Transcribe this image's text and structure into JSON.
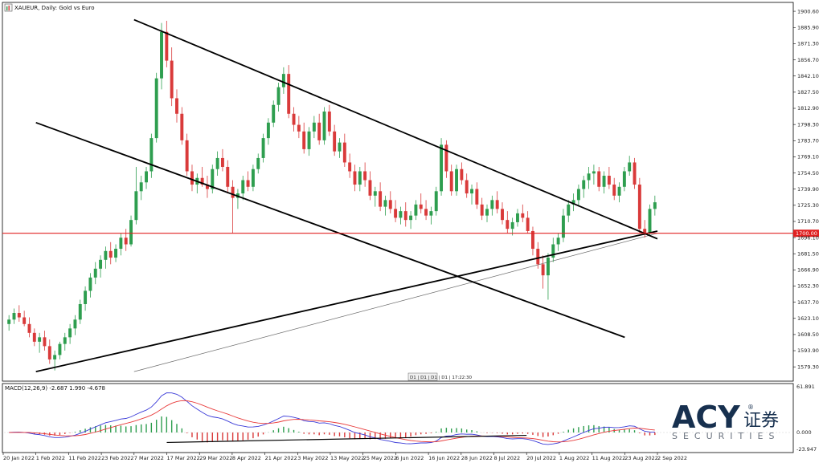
{
  "window": {
    "symbol_title": "XAUEUR, Daily: Gold vs Euro",
    "period_tabs": "D1 | D1 | D1 | D1 | 17:22:30"
  },
  "price_scale": {
    "labels": [
      "1900.60",
      "1885.90",
      "1871.30",
      "1856.70",
      "1842.10",
      "1827.50",
      "1812.90",
      "1798.30",
      "1783.70",
      "1769.10",
      "1754.50",
      "1739.90",
      "1725.30",
      "1710.70",
      "1696.10",
      "1681.50",
      "1666.90",
      "1652.30",
      "1637.70",
      "1623.10",
      "1608.50",
      "1593.90",
      "1579.30"
    ],
    "current_price_label": "1700.00"
  },
  "time_scale": {
    "labels": [
      "20 Jan 2022",
      "1 Feb 2022",
      "11 Feb 2022",
      "23 Feb 2022",
      "7 Mar 2022",
      "17 Mar 2022",
      "29 Mar 2022",
      "8 Apr 2022",
      "21 Apr 2022",
      "3 May 2022",
      "13 May 2022",
      "25 May 2022",
      "6 Jun 2022",
      "16 Jun 2022",
      "28 Jun 2022",
      "8 Jul 2022",
      "20 Jul 2022",
      "1 Aug 2022",
      "11 Aug 2022",
      "23 Aug 2022",
      "2 Sep 2022"
    ]
  },
  "macd": {
    "header": "MACD(12,26,9) -2.687 1.990 -4.678",
    "scale_labels": [
      "61.891",
      "0.000",
      "-23.947"
    ]
  },
  "logo": {
    "brand": "ACY",
    "chinese": "证券",
    "sub": "SECURITIES",
    "registered": "®"
  },
  "colors": {
    "bull": "#2e9e4f",
    "bear": "#d93a3a",
    "support_line": "#e02020",
    "trendline": "#000000",
    "macd_line": "#3a3ad8",
    "signal_line": "#e83a3a",
    "ma_line": "#6e6e6e"
  },
  "chart_data": {
    "type": "candlestick",
    "title": "XAUEUR, Daily: Gold vs Euro",
    "ylim": [
      1570,
      1905
    ],
    "horizontal_level": 1700.0,
    "candles": [
      [
        1618,
        1626,
        1612,
        1622
      ],
      [
        1622,
        1632,
        1618,
        1628
      ],
      [
        1628,
        1635,
        1620,
        1624
      ],
      [
        1624,
        1630,
        1616,
        1618
      ],
      [
        1618,
        1624,
        1606,
        1610
      ],
      [
        1610,
        1614,
        1598,
        1602
      ],
      [
        1602,
        1610,
        1592,
        1606
      ],
      [
        1606,
        1612,
        1594,
        1598
      ],
      [
        1598,
        1604,
        1582,
        1586
      ],
      [
        1586,
        1594,
        1576,
        1590
      ],
      [
        1590,
        1602,
        1586,
        1600
      ],
      [
        1600,
        1610,
        1594,
        1606
      ],
      [
        1606,
        1618,
        1600,
        1614
      ],
      [
        1614,
        1626,
        1608,
        1622
      ],
      [
        1622,
        1640,
        1618,
        1636
      ],
      [
        1636,
        1652,
        1630,
        1648
      ],
      [
        1648,
        1664,
        1642,
        1660
      ],
      [
        1660,
        1674,
        1654,
        1668
      ],
      [
        1668,
        1680,
        1660,
        1676
      ],
      [
        1676,
        1688,
        1668,
        1684
      ],
      [
        1684,
        1692,
        1672,
        1678
      ],
      [
        1678,
        1690,
        1674,
        1686
      ],
      [
        1686,
        1700,
        1680,
        1696
      ],
      [
        1696,
        1704,
        1684,
        1690
      ],
      [
        1690,
        1716,
        1688,
        1712
      ],
      [
        1712,
        1760,
        1708,
        1738
      ],
      [
        1738,
        1752,
        1730,
        1746
      ],
      [
        1746,
        1760,
        1740,
        1756
      ],
      [
        1756,
        1790,
        1750,
        1786
      ],
      [
        1786,
        1845,
        1782,
        1840
      ],
      [
        1840,
        1890,
        1830,
        1882
      ],
      [
        1882,
        1892,
        1850,
        1856
      ],
      [
        1856,
        1868,
        1815,
        1822
      ],
      [
        1822,
        1830,
        1800,
        1808
      ],
      [
        1808,
        1814,
        1780,
        1784
      ],
      [
        1784,
        1790,
        1752,
        1756
      ],
      [
        1756,
        1762,
        1738,
        1744
      ],
      [
        1744,
        1754,
        1736,
        1750
      ],
      [
        1750,
        1760,
        1742,
        1744
      ],
      [
        1744,
        1752,
        1732,
        1740
      ],
      [
        1740,
        1762,
        1736,
        1758
      ],
      [
        1758,
        1774,
        1752,
        1768
      ],
      [
        1768,
        1776,
        1756,
        1760
      ],
      [
        1760,
        1766,
        1736,
        1742
      ],
      [
        1742,
        1748,
        1700,
        1732
      ],
      [
        1732,
        1740,
        1722,
        1736
      ],
      [
        1736,
        1752,
        1730,
        1748
      ],
      [
        1748,
        1756,
        1738,
        1742
      ],
      [
        1742,
        1762,
        1738,
        1758
      ],
      [
        1758,
        1772,
        1754,
        1768
      ],
      [
        1768,
        1790,
        1764,
        1786
      ],
      [
        1786,
        1804,
        1780,
        1800
      ],
      [
        1800,
        1820,
        1796,
        1816
      ],
      [
        1816,
        1836,
        1810,
        1832
      ],
      [
        1832,
        1850,
        1826,
        1844
      ],
      [
        1844,
        1852,
        1804,
        1808
      ],
      [
        1808,
        1814,
        1792,
        1798
      ],
      [
        1798,
        1806,
        1786,
        1792
      ],
      [
        1792,
        1800,
        1772,
        1776
      ],
      [
        1776,
        1796,
        1770,
        1792
      ],
      [
        1792,
        1806,
        1786,
        1800
      ],
      [
        1800,
        1808,
        1780,
        1784
      ],
      [
        1784,
        1814,
        1780,
        1810
      ],
      [
        1810,
        1816,
        1788,
        1792
      ],
      [
        1792,
        1798,
        1770,
        1774
      ],
      [
        1774,
        1786,
        1768,
        1782
      ],
      [
        1782,
        1790,
        1760,
        1764
      ],
      [
        1764,
        1772,
        1750,
        1756
      ],
      [
        1756,
        1762,
        1738,
        1744
      ],
      [
        1744,
        1760,
        1738,
        1756
      ],
      [
        1756,
        1764,
        1742,
        1748
      ],
      [
        1748,
        1756,
        1730,
        1734
      ],
      [
        1734,
        1742,
        1724,
        1738
      ],
      [
        1738,
        1746,
        1720,
        1724
      ],
      [
        1724,
        1734,
        1716,
        1730
      ],
      [
        1730,
        1738,
        1718,
        1722
      ],
      [
        1722,
        1730,
        1710,
        1714
      ],
      [
        1714,
        1724,
        1708,
        1720
      ],
      [
        1720,
        1728,
        1706,
        1712
      ],
      [
        1712,
        1720,
        1704,
        1716
      ],
      [
        1716,
        1730,
        1712,
        1726
      ],
      [
        1726,
        1736,
        1718,
        1722
      ],
      [
        1722,
        1730,
        1712,
        1716
      ],
      [
        1716,
        1724,
        1708,
        1720
      ],
      [
        1720,
        1742,
        1716,
        1738
      ],
      [
        1738,
        1786,
        1734,
        1780
      ],
      [
        1780,
        1784,
        1750,
        1756
      ],
      [
        1756,
        1762,
        1734,
        1738
      ],
      [
        1738,
        1762,
        1734,
        1758
      ],
      [
        1758,
        1764,
        1744,
        1748
      ],
      [
        1748,
        1754,
        1732,
        1736
      ],
      [
        1736,
        1744,
        1726,
        1740
      ],
      [
        1740,
        1746,
        1722,
        1726
      ],
      [
        1726,
        1732,
        1712,
        1716
      ],
      [
        1716,
        1726,
        1710,
        1722
      ],
      [
        1722,
        1734,
        1716,
        1730
      ],
      [
        1730,
        1738,
        1718,
        1722
      ],
      [
        1722,
        1728,
        1708,
        1712
      ],
      [
        1712,
        1720,
        1700,
        1704
      ],
      [
        1704,
        1714,
        1698,
        1710
      ],
      [
        1710,
        1722,
        1706,
        1718
      ],
      [
        1718,
        1726,
        1710,
        1714
      ],
      [
        1714,
        1720,
        1700,
        1702
      ],
      [
        1702,
        1706,
        1680,
        1686
      ],
      [
        1686,
        1692,
        1668,
        1672
      ],
      [
        1672,
        1680,
        1650,
        1662
      ],
      [
        1662,
        1682,
        1640,
        1678
      ],
      [
        1678,
        1696,
        1674,
        1690
      ],
      [
        1690,
        1700,
        1684,
        1696
      ],
      [
        1696,
        1722,
        1692,
        1716
      ],
      [
        1716,
        1730,
        1710,
        1726
      ],
      [
        1726,
        1736,
        1720,
        1730
      ],
      [
        1730,
        1744,
        1724,
        1740
      ],
      [
        1740,
        1752,
        1732,
        1748
      ],
      [
        1748,
        1760,
        1740,
        1754
      ],
      [
        1754,
        1762,
        1744,
        1756
      ],
      [
        1756,
        1760,
        1738,
        1742
      ],
      [
        1742,
        1756,
        1736,
        1752
      ],
      [
        1752,
        1760,
        1740,
        1744
      ],
      [
        1744,
        1750,
        1730,
        1734
      ],
      [
        1734,
        1746,
        1728,
        1742
      ],
      [
        1742,
        1760,
        1738,
        1756
      ],
      [
        1756,
        1770,
        1752,
        1764
      ],
      [
        1764,
        1768,
        1740,
        1744
      ],
      [
        1744,
        1750,
        1700,
        1704
      ],
      [
        1704,
        1712,
        1696,
        1700
      ],
      [
        1700,
        1726,
        1698,
        1722
      ],
      [
        1722,
        1734,
        1716,
        1728
      ]
    ],
    "trendlines": [
      {
        "name": "channel-upper",
        "from": [
          "7 Mar 2022",
          1893
        ],
        "to": [
          "2 Sep 2022",
          1695
        ]
      },
      {
        "name": "channel-lower",
        "from": [
          "1 Feb 2022",
          1800
        ],
        "to": [
          "23 Aug 2022",
          1606
        ]
      },
      {
        "name": "ascending-support",
        "from": [
          "1 Feb 2022",
          1575
        ],
        "to": [
          "2 Sep 2022",
          1702
        ]
      }
    ],
    "moving_average": {
      "from": [
        "7 Mar 2022",
        1575
      ],
      "to": [
        "2 Sep 2022",
        1700
      ]
    }
  }
}
